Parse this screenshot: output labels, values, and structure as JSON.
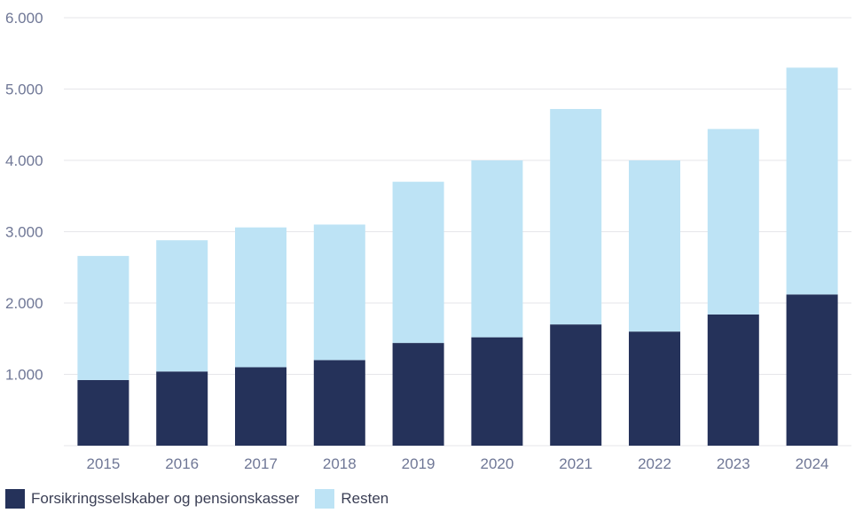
{
  "colors": {
    "series_dark": "#25325a",
    "series_light": "#bde3f5",
    "grid": "#e6e6ea",
    "axis_text": "#6f7796"
  },
  "chart_data": {
    "type": "bar",
    "stacked": true,
    "categories": [
      "2015",
      "2016",
      "2017",
      "2018",
      "2019",
      "2020",
      "2021",
      "2022",
      "2023",
      "2024"
    ],
    "series": [
      {
        "name": "Forsikringsselskaber og pensionskasser",
        "values": [
          920,
          1040,
          1100,
          1200,
          1440,
          1520,
          1700,
          1600,
          1840,
          2120
        ]
      },
      {
        "name": "Resten",
        "values": [
          1740,
          1840,
          1960,
          1900,
          2260,
          2480,
          3020,
          2400,
          2600,
          3180
        ]
      }
    ],
    "y_ticks": [
      "1.000",
      "2.000",
      "3.000",
      "4.000",
      "5.000",
      "6.000"
    ],
    "ylim": [
      0,
      6000
    ],
    "grid": true,
    "legend_position": "bottom-left"
  }
}
